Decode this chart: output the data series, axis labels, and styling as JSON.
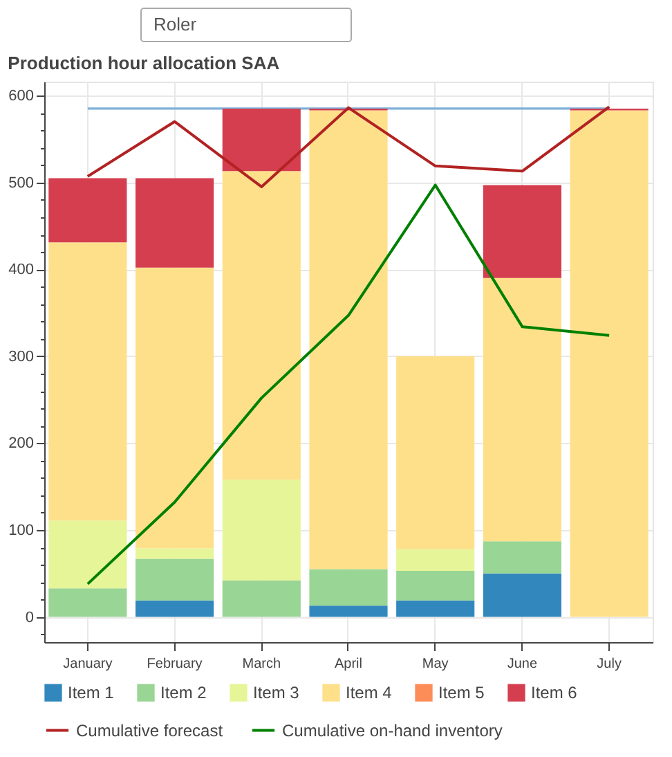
{
  "chart_data": {
    "type": "bar",
    "stacked": true,
    "title": "Production hour allocation SAA",
    "annotations": [
      "Roler"
    ],
    "categories": [
      "January",
      "February",
      "March",
      "April",
      "May",
      "June",
      "July"
    ],
    "series": [
      {
        "name": "Item 1",
        "color": "#3288bd",
        "values": [
          0,
          19,
          0,
          13,
          19,
          50,
          0
        ]
      },
      {
        "name": "Item 2",
        "color": "#99d594",
        "values": [
          33,
          48,
          42,
          42,
          34,
          37,
          0
        ]
      },
      {
        "name": "Item 3",
        "color": "#e6f598",
        "values": [
          78,
          12,
          116,
          0,
          25,
          0,
          0
        ]
      },
      {
        "name": "Item 4",
        "color": "#fee08b",
        "values": [
          320,
          323,
          355,
          528,
          222,
          303,
          583
        ]
      },
      {
        "name": "Item 5",
        "color": "#fc8d59",
        "values": [
          0,
          0,
          0,
          0,
          0,
          0,
          0
        ]
      },
      {
        "name": "Item 6",
        "color": "#d53e4f",
        "values": [
          74,
          103,
          72,
          2,
          0,
          107,
          2
        ]
      },
      {
        "type": "line",
        "color": "#7fb0d8",
        "values": [
          585,
          585,
          585,
          585,
          585,
          585,
          585
        ]
      },
      {
        "type": "line",
        "name": "Cumulative forecast",
        "color": "#b22222",
        "values": [
          507,
          570,
          495,
          586,
          519,
          513,
          587
        ]
      },
      {
        "type": "line",
        "name": "Cumulative on-hand inventory",
        "color": "#008000",
        "values": [
          38,
          132,
          252,
          347,
          497,
          334,
          324
        ]
      }
    ],
    "ylim": [
      -29,
      616
    ],
    "yticks": [
      {
        "value": -20,
        "label": null
      },
      0,
      {
        "value": 20,
        "label": null
      },
      {
        "value": 40,
        "label": null
      },
      {
        "value": 60,
        "label": null
      },
      {
        "value": 80,
        "label": null
      },
      100,
      {
        "value": 120,
        "label": null
      },
      {
        "value": 140,
        "label": null
      },
      {
        "value": 160,
        "label": null
      },
      {
        "value": 180,
        "label": null
      },
      200,
      {
        "value": 220,
        "label": null
      },
      {
        "value": 240,
        "label": null
      },
      {
        "value": 260,
        "label": null
      },
      {
        "value": 280,
        "label": null
      },
      300,
      {
        "value": 320,
        "label": null
      },
      {
        "value": 340,
        "label": null
      },
      {
        "value": 360,
        "label": null
      },
      {
        "value": 380,
        "label": null
      },
      400,
      {
        "value": 420,
        "label": null
      },
      {
        "value": 440,
        "label": null
      },
      {
        "value": 460,
        "label": null
      },
      {
        "value": 480,
        "label": null
      },
      500,
      {
        "value": 520,
        "label": null
      },
      {
        "value": 540,
        "label": null
      },
      {
        "value": 560,
        "label": null
      },
      {
        "value": 580,
        "label": null
      },
      600
    ],
    "grid": true,
    "legend": "bottom"
  }
}
